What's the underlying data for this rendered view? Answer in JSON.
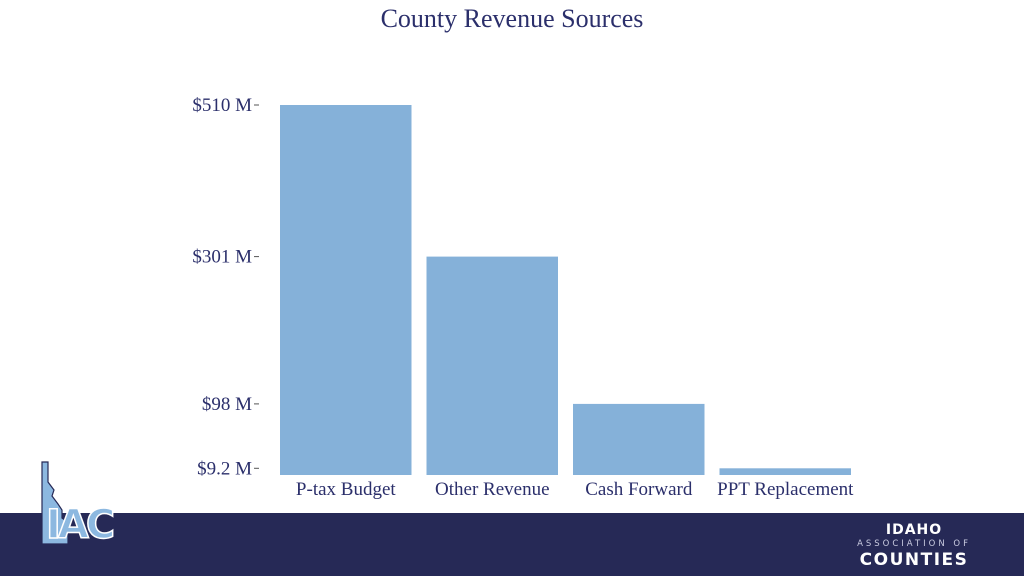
{
  "chart_data": {
    "type": "bar",
    "title": "County Revenue Sources",
    "categories": [
      "P-tax Budget",
      "Other Revenue",
      "Cash Forward",
      "PPT Replacement"
    ],
    "values": [
      510,
      301,
      98,
      9.2
    ],
    "unit": "M",
    "yticks": [
      {
        "value": 510,
        "label": "$510 M"
      },
      {
        "value": 301,
        "label": "$301 M"
      },
      {
        "value": 98,
        "label": "$98 M"
      },
      {
        "value": 9.2,
        "label": "$9.2 M"
      }
    ],
    "ylim": [
      0,
      510
    ],
    "grid": false,
    "bar_color": "#85b1d9"
  },
  "branding": {
    "logo_text": "IAC",
    "org_top": "IDAHO",
    "org_mid": "ASSOCIATION OF",
    "org_bot": "COUNTIES"
  },
  "colors": {
    "footer": "#262956",
    "title": "#2b2f6b",
    "logo_light": "#8cb8e0",
    "logo_dark": "#262956"
  }
}
